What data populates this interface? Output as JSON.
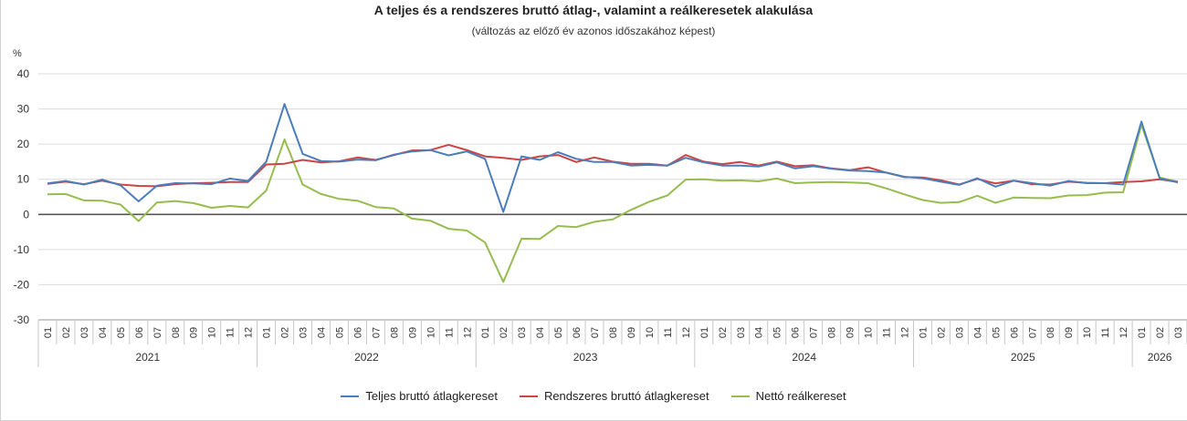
{
  "chart_data": {
    "type": "line",
    "title": "A teljes és a rendszeres bruttó átlag-, valamint a reálkeresetek alakulása",
    "subtitle": "(változás az előző év azonos időszakához képest)",
    "ylabel": "%",
    "ylim": [
      -30,
      40
    ],
    "yticks": [
      40,
      30,
      20,
      10,
      0,
      -10,
      -20,
      -30
    ],
    "grid": true,
    "legend_position": "bottom",
    "years": [
      "2021",
      "2022",
      "2023",
      "2024",
      "2025",
      "2026"
    ],
    "year_month_counts": [
      12,
      12,
      12,
      12,
      12,
      3
    ],
    "x": [
      "01",
      "02",
      "03",
      "04",
      "05",
      "06",
      "07",
      "08",
      "09",
      "10",
      "11",
      "12",
      "01",
      "02",
      "03",
      "04",
      "05",
      "06",
      "07",
      "08",
      "09",
      "10",
      "11",
      "12",
      "01",
      "02",
      "03",
      "04",
      "05",
      "06",
      "07",
      "08",
      "09",
      "10",
      "11",
      "12",
      "01",
      "02",
      "03",
      "04",
      "05",
      "06",
      "07",
      "08",
      "09",
      "10",
      "11",
      "12",
      "01",
      "02",
      "03",
      "04",
      "05",
      "06",
      "07",
      "08",
      "09",
      "10",
      "11",
      "12",
      "01",
      "02",
      "03"
    ],
    "series": [
      {
        "name": "Teljes bruttó átlagkereset",
        "color": "#4a7ebb",
        "values": [
          8.8,
          9.5,
          8.5,
          9.9,
          8.3,
          3.7,
          8.2,
          8.9,
          8.8,
          8.6,
          10.2,
          9.5,
          15.0,
          31.4,
          17.2,
          15.2,
          15.0,
          15.6,
          15.4,
          17.0,
          17.9,
          18.3,
          16.8,
          17.9,
          15.8,
          0.7,
          16.5,
          15.5,
          17.7,
          15.8,
          14.9,
          14.9,
          13.9,
          14.1,
          13.9,
          16.1,
          14.8,
          13.9,
          13.9,
          13.6,
          14.8,
          13.1,
          13.7,
          13.0,
          12.5,
          12.3,
          11.9,
          10.7,
          10.3,
          9.3,
          8.4,
          10.3,
          7.9,
          9.6,
          8.9,
          8.2,
          9.5,
          8.9,
          8.9,
          8.5,
          26.4,
          10.3,
          9.1
        ]
      },
      {
        "name": "Rendszeres bruttó átlagkereset",
        "color": "#cc4444",
        "values": [
          8.7,
          9.3,
          8.6,
          9.6,
          8.5,
          8.1,
          8.0,
          8.6,
          8.9,
          9.0,
          9.2,
          9.2,
          14.2,
          14.4,
          15.5,
          14.8,
          15.1,
          16.2,
          15.5,
          16.9,
          18.2,
          18.3,
          19.8,
          18.3,
          16.5,
          16.1,
          15.5,
          16.5,
          16.9,
          14.9,
          16.2,
          15.0,
          14.4,
          14.4,
          13.9,
          16.9,
          15.0,
          14.3,
          14.9,
          13.9,
          15.0,
          13.7,
          14.0,
          13.1,
          12.6,
          13.4,
          11.9,
          10.6,
          10.5,
          9.7,
          8.5,
          10.1,
          8.8,
          9.6,
          8.6,
          8.5,
          9.3,
          9.0,
          8.9,
          9.2,
          9.4,
          10.0,
          9.2
        ]
      },
      {
        "name": "Nettó reálkereset",
        "color": "#96bd4f",
        "values": [
          5.7,
          5.8,
          4.0,
          3.9,
          2.8,
          -1.9,
          3.4,
          3.8,
          3.2,
          1.9,
          2.4,
          2.0,
          6.8,
          21.3,
          8.5,
          5.8,
          4.4,
          3.9,
          2.1,
          1.7,
          -1.2,
          -1.8,
          -4.1,
          -4.6,
          -8.0,
          -19.2,
          -6.9,
          -7.0,
          -3.3,
          -3.6,
          -2.1,
          -1.4,
          1.3,
          3.6,
          5.4,
          9.9,
          10.0,
          9.6,
          9.7,
          9.4,
          10.2,
          8.9,
          9.1,
          9.2,
          9.1,
          8.9,
          7.4,
          5.7,
          4.1,
          3.3,
          3.5,
          5.3,
          3.3,
          4.8,
          4.7,
          4.6,
          5.4,
          5.5,
          6.2,
          6.3,
          25.5,
          10.5,
          9.3
        ]
      }
    ]
  }
}
